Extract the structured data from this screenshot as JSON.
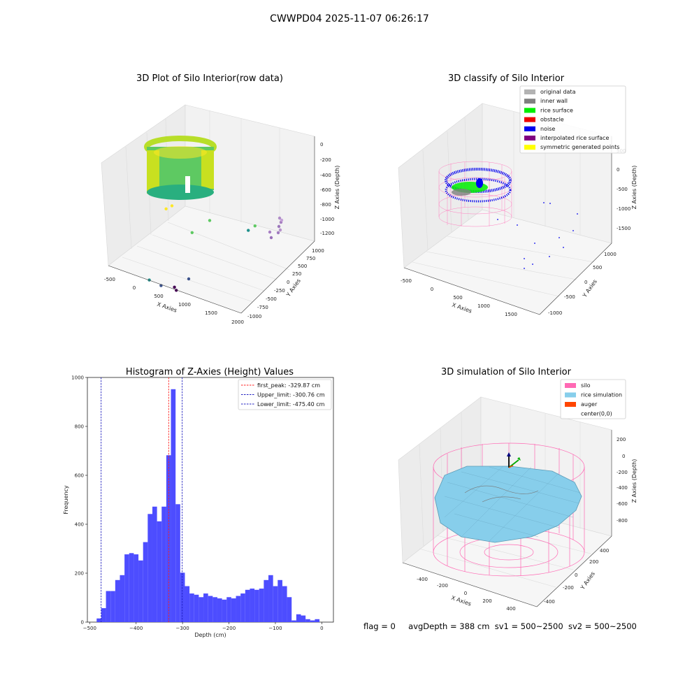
{
  "suptitle": "CWWPD04 2025-11-07 06:26:17",
  "footer": {
    "flag": "flag = 0",
    "avg_depth": "avgDepth = 388 cm",
    "sv1": "sv1 = 500~2500",
    "sv2": "sv2 = 500~2500"
  },
  "colors": {
    "hist_bar": "#4d4dff",
    "peak_line": "#ff2020",
    "limit_line": "#2020c0",
    "silo": "#ff69b4",
    "rice": "#87ceeb",
    "auger": "#ff4500",
    "rice_surface": "#00ee00",
    "noise": "#0000ee"
  },
  "chart_data": [
    {
      "type": "scatter",
      "subtype": "3d",
      "title": "3D Plot of Silo Interior(row data)",
      "xlabel": "X Axies",
      "ylabel": "Y Axies",
      "zlabel": "Z Axies (Depth)",
      "xticks": [
        "-500",
        "0",
        "500",
        "1000",
        "1500",
        "2000"
      ],
      "yticks": [
        "-1000",
        "-750",
        "-500",
        "-250",
        "0",
        "250",
        "500",
        "750",
        "1000"
      ],
      "zticks": [
        "0",
        "-200",
        "-400",
        "-600",
        "-800",
        "-1000",
        "-1200"
      ],
      "colormap": "viridis",
      "points": [
        {
          "x": 1300,
          "y": -600,
          "z": -1300
        },
        {
          "x": 1420,
          "y": -700,
          "z": -1250
        },
        {
          "x": 1200,
          "y": -800,
          "z": -1150
        },
        {
          "x": 1050,
          "y": -900,
          "z": -1000
        },
        {
          "x": 1500,
          "y": -500,
          "z": -1100
        },
        {
          "x": 900,
          "y": 300,
          "z": -850
        },
        {
          "x": 1000,
          "y": 600,
          "z": -750
        },
        {
          "x": 1600,
          "y": 800,
          "z": -900
        },
        {
          "x": 1650,
          "y": 900,
          "z": -850
        },
        {
          "x": 300,
          "y": 400,
          "z": -600
        },
        {
          "x": 250,
          "y": 600,
          "z": -700
        }
      ]
    },
    {
      "type": "scatter",
      "subtype": "3d",
      "title": "3D classify of Silo Interior",
      "xlabel": "X Axies",
      "ylabel": "Y Axies",
      "zlabel": "Z Axies (Depth)",
      "xticks": [
        "-500",
        "0",
        "500",
        "1000",
        "1500"
      ],
      "yticks": [
        "-1000",
        "-500",
        "0",
        "500",
        "1000"
      ],
      "zticks": [
        "500",
        "0",
        "-500",
        "-1000",
        "-1500"
      ],
      "legend": {
        "placement": "top-right",
        "entries": [
          {
            "label": "original data",
            "color": "#b3b3b3"
          },
          {
            "label": "inner wall",
            "color": "#808080"
          },
          {
            "label": "rice surface",
            "color": "#00ee00"
          },
          {
            "label": "obstacle",
            "color": "#ee0000"
          },
          {
            "label": "noise",
            "color": "#0000ee"
          },
          {
            "label": "interpolated rice surface",
            "color": "#800080"
          },
          {
            "label": "symmetric generated points",
            "color": "#ffff00"
          }
        ]
      }
    },
    {
      "type": "bar",
      "subtype": "histogram",
      "title": "Histogram of Z-Axies (Height) Values",
      "xlabel": "Depth (cm)",
      "ylabel": "Frequency",
      "xlim": [
        -505,
        25
      ],
      "ylim": [
        0,
        1000
      ],
      "xticks": [
        -500,
        -400,
        -300,
        -200,
        -100,
        0
      ],
      "yticks": [
        0,
        200,
        400,
        600,
        800,
        1000
      ],
      "bin_start": -485,
      "bin_width": 10,
      "values": [
        15,
        57,
        127,
        127,
        172,
        192,
        277,
        282,
        277,
        252,
        327,
        442,
        472,
        412,
        472,
        682,
        952,
        482,
        202,
        147,
        117,
        112,
        102,
        117,
        107,
        102,
        97,
        92,
        102,
        97,
        107,
        117,
        132,
        137,
        132,
        137,
        172,
        192,
        147,
        172,
        147,
        102,
        7,
        32,
        27,
        12,
        7,
        12
      ],
      "lines": [
        {
          "label": "first_peak: -329.87 cm",
          "x": -329.87,
          "style": "red"
        },
        {
          "label": "Upper_limit: -300.76 cm",
          "x": -300.76,
          "style": "blue"
        },
        {
          "label": "Lower_limit: -475.40 cm",
          "x": -475.4,
          "style": "blue"
        }
      ],
      "legend": {
        "placement": "top-right"
      }
    },
    {
      "type": "area",
      "subtype": "3d-surface",
      "title": "3D simulation of Silo Interior",
      "xlabel": "X Axies",
      "ylabel": "Y Axies",
      "zlabel": "Z Axies (Depth)",
      "xticks": [
        "-400",
        "-200",
        "0",
        "200",
        "400"
      ],
      "yticks": [
        "-400",
        "-200",
        "0",
        "200",
        "400"
      ],
      "zticks": [
        "200",
        "0",
        "-200",
        "-400",
        "-600",
        "-800"
      ],
      "legend": {
        "placement": "top-right",
        "entries": [
          {
            "label": "silo",
            "color": "#ff69b4"
          },
          {
            "label": "rice simulation",
            "color": "#87ceeb"
          },
          {
            "label": "auger",
            "color": "#ff4500"
          },
          {
            "label": "center(0,0)",
            "color": ""
          }
        ]
      }
    }
  ]
}
